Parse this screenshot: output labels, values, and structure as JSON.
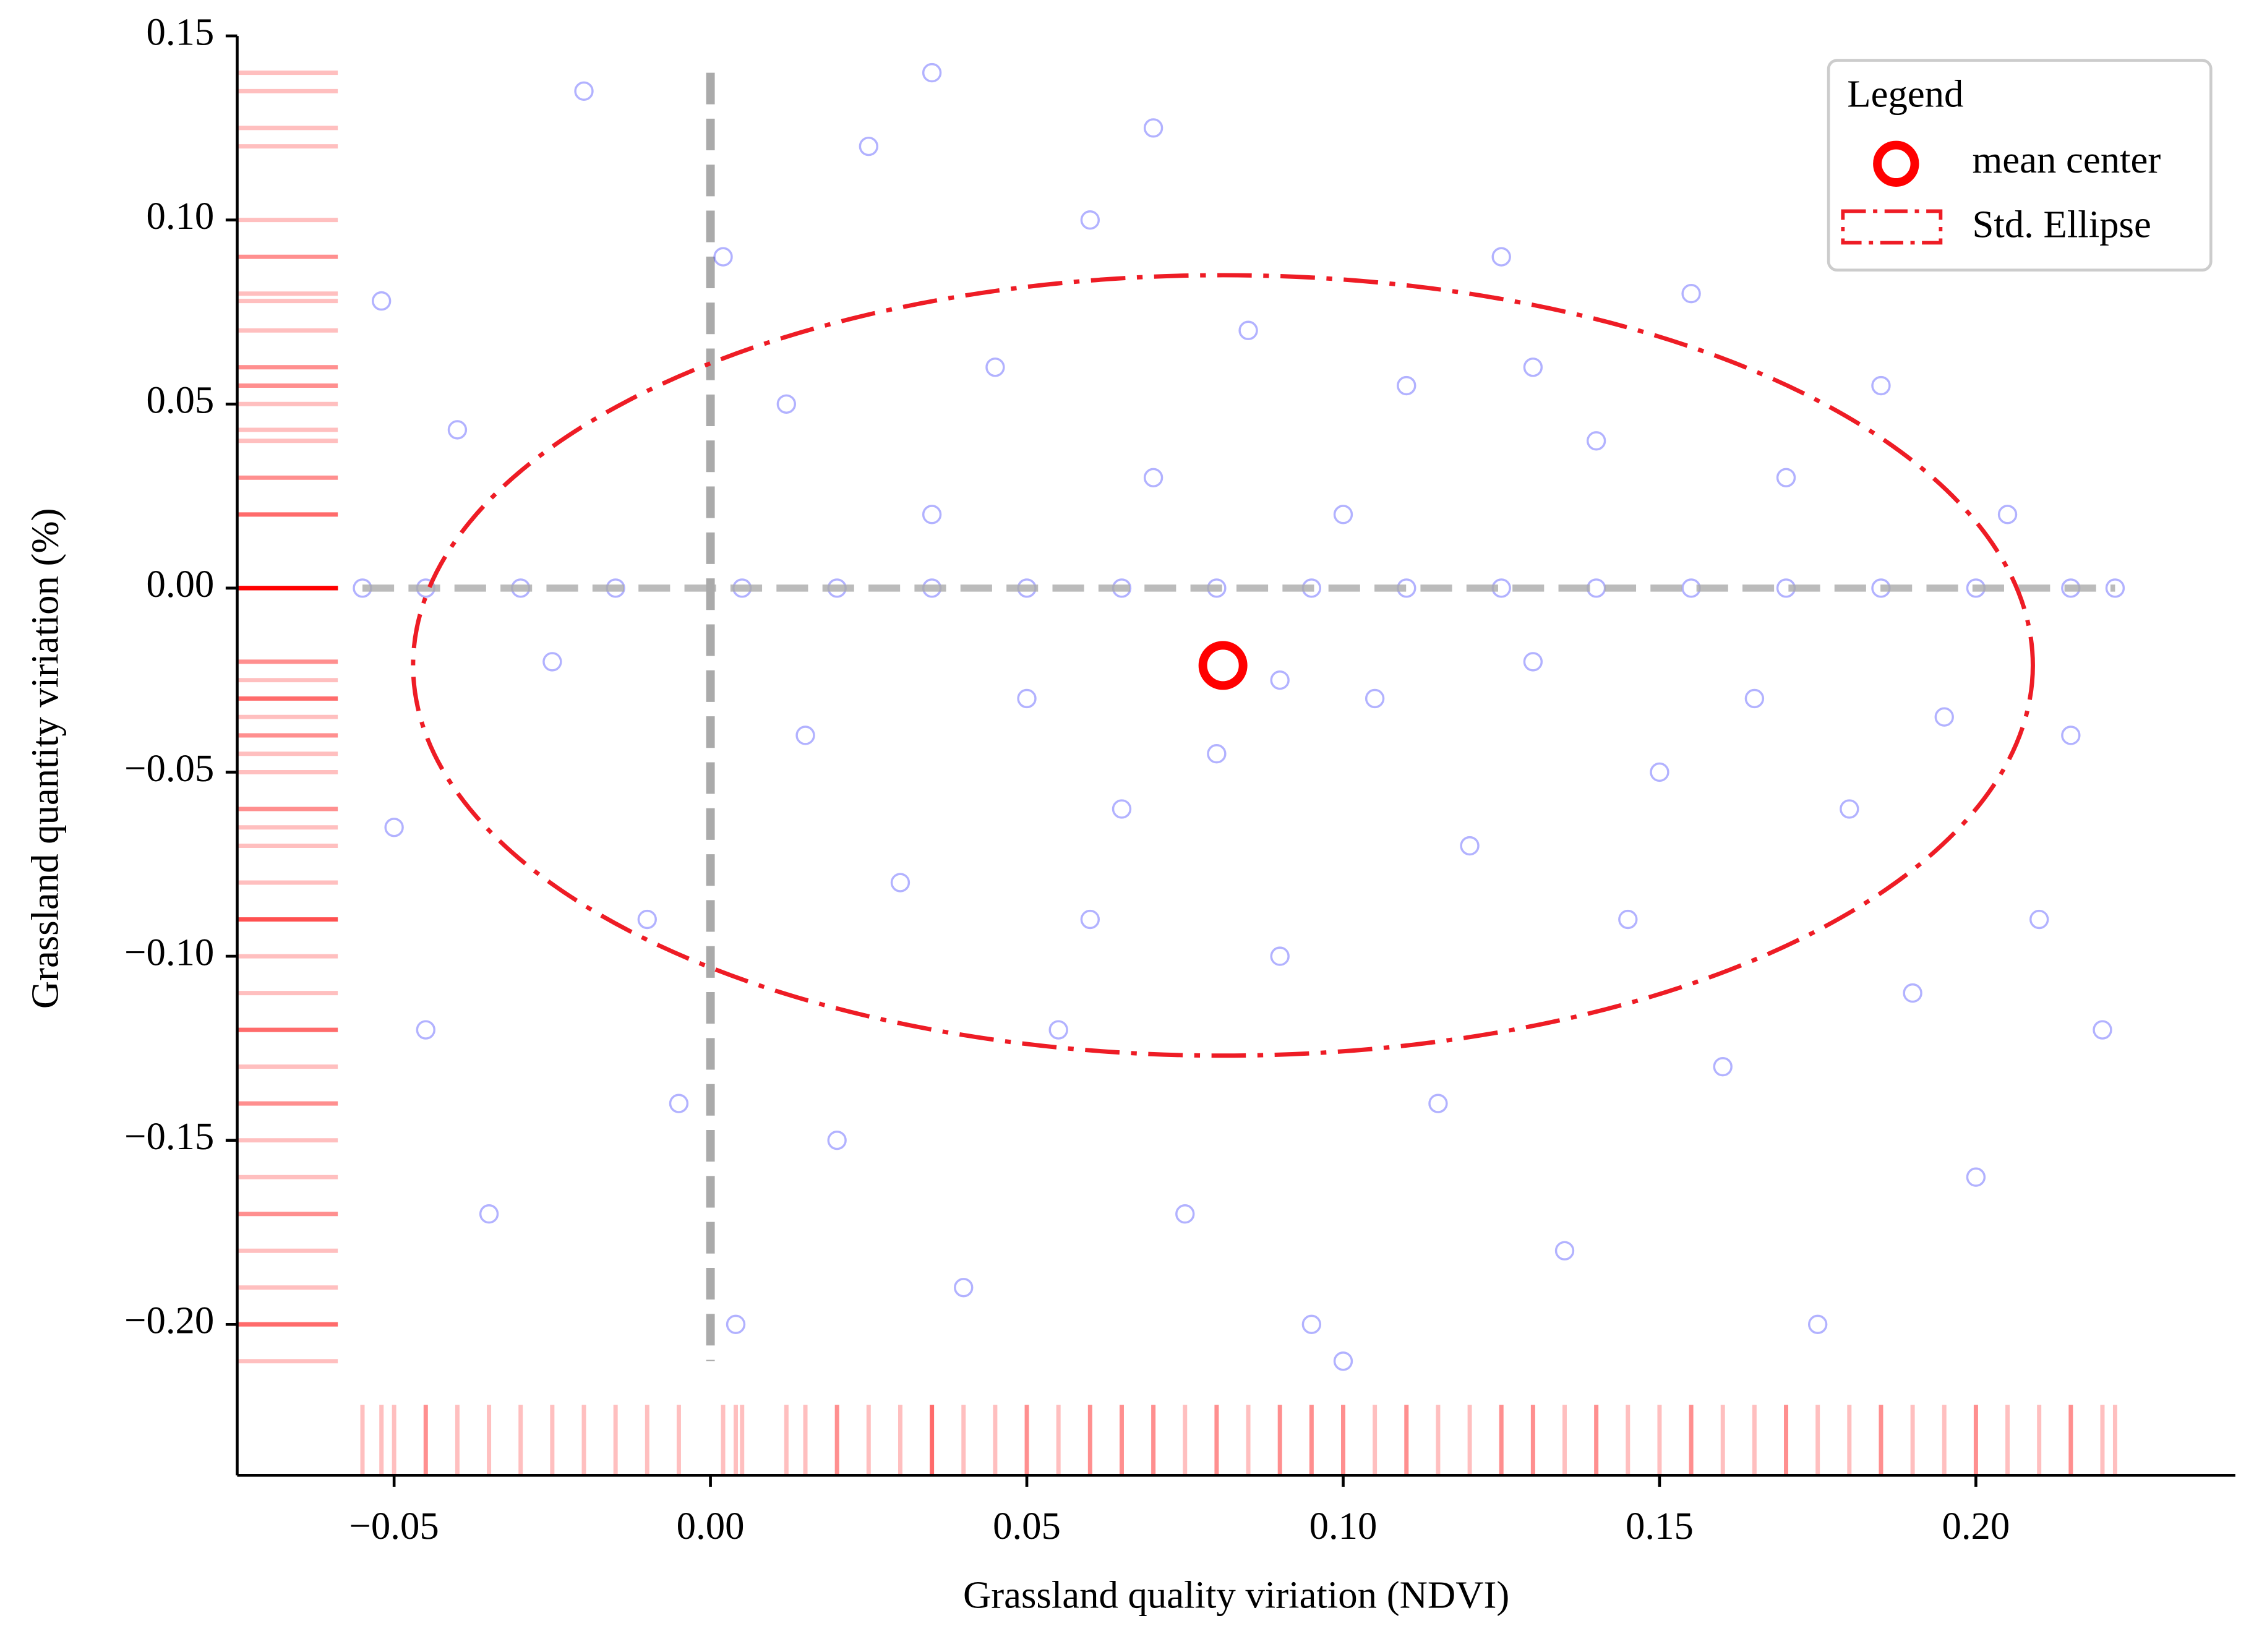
{
  "chart_data": {
    "type": "scatter",
    "xlabel": "Grassland quality viriation (NDVI)",
    "ylabel": "Grassland quantity viriation (%)",
    "xlim": [
      -0.0748,
      0.241
    ],
    "ylim": [
      -0.241,
      0.15
    ],
    "xticks": [
      {
        "value": -0.05,
        "label": "−0.05"
      },
      {
        "value": 0,
        "label": "0.00"
      },
      {
        "value": 0.05,
        "label": "0.05"
      },
      {
        "value": 0.1,
        "label": "0.10"
      },
      {
        "value": 0.15,
        "label": "0.15"
      },
      {
        "value": 0.2,
        "label": "0.20"
      }
    ],
    "yticks": [
      {
        "value": -0.2,
        "label": "−0.20"
      },
      {
        "value": -0.15,
        "label": "−0.15"
      },
      {
        "value": -0.1,
        "label": "−0.10"
      },
      {
        "value": -0.05,
        "label": "−0.05"
      },
      {
        "value": 0,
        "label": "0.00"
      },
      {
        "value": 0.05,
        "label": "0.05"
      },
      {
        "value": 0.1,
        "label": "0.10"
      },
      {
        "value": 0.15,
        "label": "0.15"
      }
    ],
    "series": [
      {
        "color": "#0000ff",
        "x": [
          -0.055,
          -0.045,
          -0.03,
          -0.015,
          0.005,
          0.02,
          0.035,
          0.05,
          0.065,
          0.08,
          0.095,
          0.11,
          0.125,
          0.14,
          0.155,
          0.17,
          0.185,
          0.2,
          0.215,
          0.222,
          -0.052,
          -0.04,
          -0.05,
          -0.045,
          -0.035,
          -0.02,
          -0.025,
          -0.01,
          0.002,
          0.004,
          0.012,
          0.015,
          0.02,
          0.025,
          0.03,
          0.035,
          0.04,
          0.045,
          0.05,
          0.055,
          0.06,
          0.065,
          0.07,
          0.075,
          0.08,
          0.085,
          0.09,
          0.095,
          0.1,
          0.105,
          0.11,
          0.115,
          0.12,
          0.125,
          0.13,
          0.135,
          0.14,
          0.145,
          0.15,
          0.155,
          0.16,
          0.165,
          0.17,
          0.175,
          0.18,
          0.185,
          0.19,
          0.195,
          0.2,
          0.205,
          0.21,
          0.215,
          0.22,
          0.035,
          0.07,
          0.1,
          -0.005,
          0.13,
          0.06,
          0.09
        ],
        "y": [
          0,
          0,
          0,
          0,
          0,
          0,
          0,
          0,
          0,
          0,
          0,
          0,
          0,
          0,
          0,
          0,
          0,
          0,
          0,
          0,
          0.078,
          0.043,
          -0.065,
          -0.12,
          -0.17,
          0.135,
          -0.02,
          -0.09,
          0.09,
          -0.2,
          0.05,
          -0.04,
          -0.15,
          0.12,
          -0.08,
          0.02,
          -0.19,
          0.06,
          -0.03,
          -0.12,
          0.1,
          -0.06,
          0.03,
          -0.17,
          -0.045,
          0.07,
          -0.1,
          -0.2,
          0.02,
          -0.03,
          0.055,
          -0.14,
          -0.07,
          0.09,
          -0.02,
          -0.18,
          0.04,
          -0.09,
          -0.05,
          0.08,
          -0.13,
          -0.03,
          0.03,
          -0.2,
          -0.06,
          0.055,
          -0.11,
          -0.035,
          -0.16,
          0.02,
          -0.09,
          -0.04,
          -0.12,
          0.14,
          0.125,
          -0.21,
          -0.14,
          0.06,
          -0.09,
          -0.025
        ]
      }
    ],
    "mean_center": {
      "name": "mean center",
      "x": 0.081,
      "y": -0.021,
      "color": "#ff0000"
    },
    "ellipse": {
      "name": "Std. Ellipse",
      "center": [
        0.081,
        -0.021
      ],
      "width": 0.256,
      "height": 0.212,
      "color": "#ee1c25"
    },
    "rug_color": "#ff0000",
    "legend": {
      "title": "Legend",
      "loc": "upper right"
    }
  }
}
